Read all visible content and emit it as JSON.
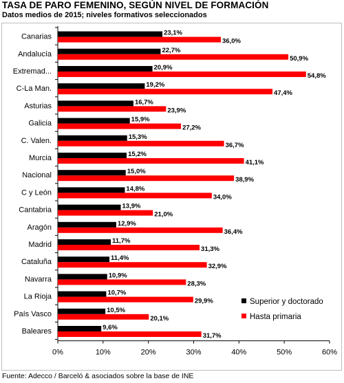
{
  "chart_data": {
    "type": "bar",
    "orientation": "horizontal",
    "title": "TASA DE PARO FEMENINO, SEGÚN NIVEL DE FORMACIÓN",
    "subtitle": "Datos medios de 2015; niveles formativos seleccionados",
    "source": "Fuente: Adecco / Barceló & asociados sobre la base de INE",
    "categories": [
      "Canarias",
      "Andalucía",
      "Extremad...",
      "C-La Man.",
      "Asturias",
      "Galicia",
      "C. Valen.",
      "Murcia",
      "Nacional",
      "C y León",
      "Cantabria",
      "Aragón",
      "Madrid",
      "Cataluña",
      "Navarra",
      "La Rioja",
      "País Vasco",
      "Baleares"
    ],
    "series": [
      {
        "name": "Superior y doctorado",
        "color": "#000000",
        "values": [
          23.1,
          22.7,
          20.9,
          19.2,
          16.7,
          15.9,
          15.3,
          15.2,
          15.0,
          14.8,
          13.9,
          12.9,
          11.7,
          11.4,
          10.9,
          10.7,
          10.5,
          9.6
        ],
        "labels": [
          "23,1%",
          "22,7%",
          "20,9%",
          "19,2%",
          "16,7%",
          "15,9%",
          "15,3%",
          "15,2%",
          "15,0%",
          "14,8%",
          "13,9%",
          "12,9%",
          "11,7%",
          "11,4%",
          "10,9%",
          "10,7%",
          "10,5%",
          "9,6%"
        ]
      },
      {
        "name": "Hasta primaria",
        "color": "#ff0000",
        "values": [
          36.0,
          50.9,
          54.8,
          47.4,
          23.9,
          27.2,
          36.7,
          41.1,
          38.9,
          34.0,
          21.0,
          36.4,
          31.3,
          32.9,
          28.3,
          29.9,
          20.1,
          31.7
        ],
        "labels": [
          "36,0%",
          "50,9%",
          "54,8%",
          "47,4%",
          "23,9%",
          "27,2%",
          "36,7%",
          "41,1%",
          "38,9%",
          "34,0%",
          "21,0%",
          "36,4%",
          "31,3%",
          "32,9%",
          "28,3%",
          "29,9%",
          "20,1%",
          "31,7%"
        ]
      }
    ],
    "xlim": [
      0,
      60
    ],
    "xticks": [
      0,
      10,
      20,
      30,
      40,
      50,
      60
    ],
    "xtick_labels": [
      "0%",
      "10%",
      "20%",
      "30%",
      "40%",
      "50%",
      "60%"
    ],
    "grid": false,
    "legend": "bottom-right"
  }
}
